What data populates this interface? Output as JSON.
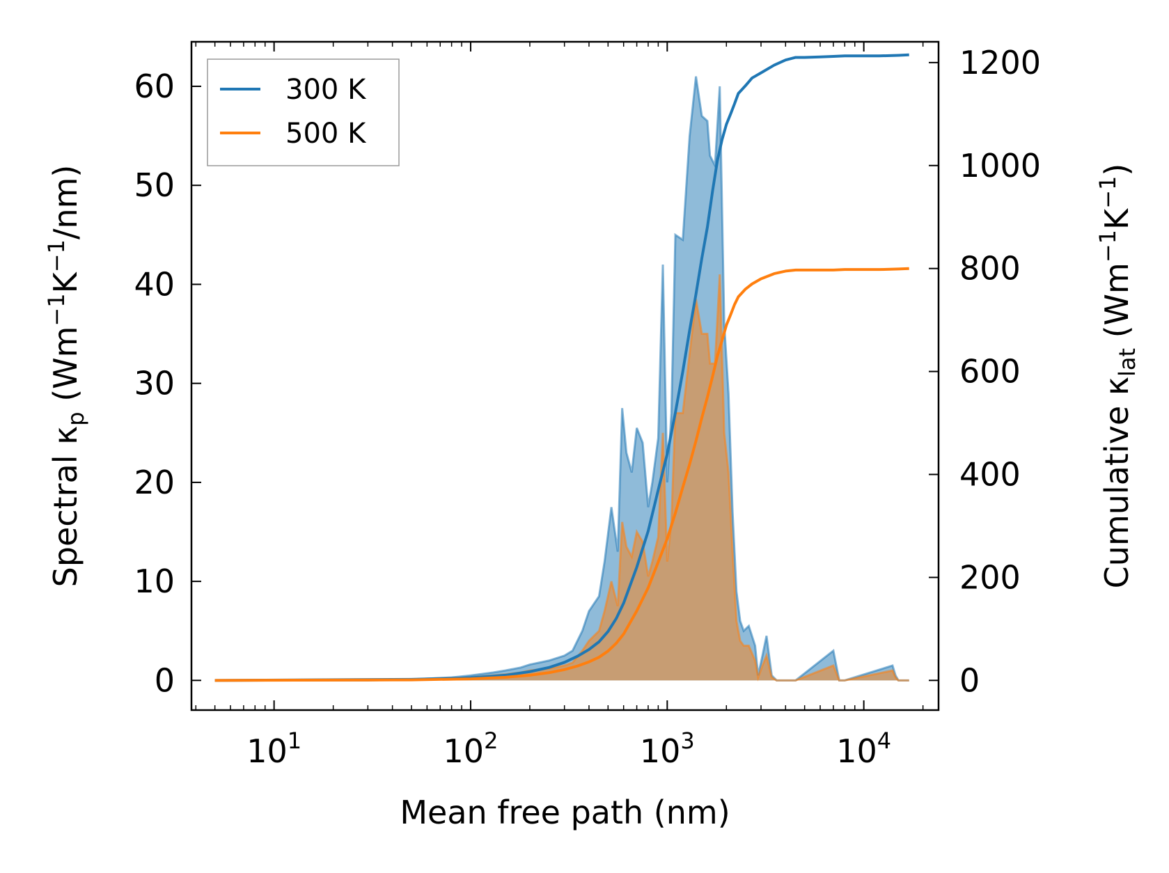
{
  "chart_data": {
    "type": "line",
    "title": "",
    "xlabel": "Mean free path (nm)",
    "ylabel_left": {
      "base": "Spectral κ",
      "sub": "p",
      "unit_prefix": " (Wm",
      "sup1": "−1",
      "mid": "K",
      "sup2": "−1",
      "unit_suffix": "/nm)"
    },
    "ylabel_right": {
      "base": "Cumulative κ",
      "sub": "lat",
      "unit_prefix": " (Wm",
      "sup1": "−1",
      "mid": "K",
      "sup2": "−1",
      "unit_suffix": ")"
    },
    "xscale": "log",
    "xlim": [
      3.8,
      24000
    ],
    "ylim_left": [
      -3,
      64.5
    ],
    "ylim_right": [
      -57.7,
      1240.4
    ],
    "xticks": [
      {
        "value": 10,
        "base": "10",
        "exp": "1"
      },
      {
        "value": 100,
        "base": "10",
        "exp": "2"
      },
      {
        "value": 1000,
        "base": "10",
        "exp": "3"
      },
      {
        "value": 10000,
        "base": "10",
        "exp": "4"
      }
    ],
    "yticks_left": [
      0,
      10,
      20,
      30,
      40,
      50,
      60
    ],
    "yticks_right": [
      0,
      200,
      400,
      600,
      800,
      1000,
      1200
    ],
    "legend": {
      "position": "top-left",
      "entries": [
        "300 K",
        "500 K"
      ]
    },
    "colors": {
      "s300": "#1f77b4",
      "s500": "#ff7f0e",
      "fill300": "#1f77b4",
      "fill500": "#ff7f0e"
    },
    "spectral": [
      {
        "name": "300 K",
        "x": [
          5,
          10,
          30,
          50,
          80,
          100,
          130,
          150,
          180,
          200,
          250,
          300,
          330,
          370,
          400,
          450,
          480,
          520,
          560,
          590,
          620,
          660,
          700,
          750,
          800,
          840,
          900,
          950,
          1000,
          1050,
          1100,
          1200,
          1300,
          1400,
          1500,
          1600,
          1650,
          1750,
          1850,
          1950,
          2050,
          2150,
          2250,
          2350,
          2450,
          2600,
          2800,
          2900,
          3050,
          3200,
          3400,
          3600,
          3800,
          4000,
          4200,
          4500,
          7000,
          7500,
          8000,
          14000,
          14500,
          15000,
          15500,
          16000,
          17000
        ],
        "y": [
          0,
          0,
          0,
          0.1,
          0.3,
          0.5,
          0.8,
          1.0,
          1.3,
          1.6,
          2.0,
          2.5,
          3.0,
          5.0,
          7.0,
          8.5,
          12.0,
          17.5,
          13.0,
          27.5,
          23.0,
          21.0,
          25.5,
          24.0,
          17.5,
          20.0,
          24.5,
          42.0,
          20.0,
          27.0,
          45.0,
          44.5,
          55.0,
          61.0,
          57.0,
          56.5,
          53.0,
          52.0,
          60.0,
          36.0,
          29.0,
          17.0,
          9.0,
          6.0,
          5.0,
          5.5,
          3.5,
          0.5,
          2.5,
          4.5,
          0.5,
          0,
          0,
          0,
          0,
          0,
          3.0,
          0,
          0,
          1.5,
          0.5,
          0,
          0,
          0,
          0
        ]
      },
      {
        "name": "500 K",
        "x": [
          5,
          10,
          30,
          50,
          80,
          100,
          130,
          150,
          180,
          200,
          250,
          300,
          330,
          370,
          400,
          450,
          480,
          520,
          560,
          590,
          620,
          660,
          700,
          750,
          800,
          840,
          900,
          950,
          1000,
          1050,
          1100,
          1200,
          1300,
          1400,
          1500,
          1600,
          1650,
          1750,
          1850,
          1950,
          2050,
          2150,
          2250,
          2350,
          2450,
          2600,
          2800,
          2900,
          3050,
          3200,
          3400,
          3600,
          3800,
          4000,
          4200,
          4500,
          7000,
          7500,
          8000,
          14000,
          14500,
          15000,
          15500,
          16000,
          17000
        ],
        "y": [
          0,
          0,
          0,
          0.05,
          0.2,
          0.3,
          0.5,
          0.6,
          0.8,
          1.0,
          1.2,
          1.5,
          1.8,
          3.0,
          4.0,
          5.0,
          7.0,
          10.0,
          7.5,
          16.0,
          13.5,
          12.5,
          15.0,
          14.0,
          10.5,
          12.0,
          14.5,
          25.0,
          12.0,
          16.0,
          27.0,
          27.0,
          33.0,
          38.5,
          35.0,
          35.0,
          32.0,
          32.0,
          41.0,
          25.0,
          21.0,
          13.0,
          6.0,
          4.0,
          3.5,
          3.5,
          2.0,
          0.3,
          1.5,
          2.5,
          0.3,
          0,
          0,
          0,
          0,
          0,
          1.5,
          0,
          0,
          1.0,
          0.3,
          0,
          0,
          0,
          0
        ]
      }
    ],
    "cumulative": [
      {
        "name": "300 K",
        "x": [
          5,
          50,
          100,
          150,
          200,
          250,
          300,
          350,
          400,
          450,
          500,
          550,
          600,
          700,
          800,
          900,
          1000,
          1100,
          1200,
          1300,
          1400,
          1500,
          1600,
          1700,
          1800,
          1900,
          2000,
          2100,
          2200,
          2300,
          2500,
          2700,
          3000,
          3500,
          4000,
          4500,
          5000,
          6000,
          7000,
          8000,
          10000,
          12000,
          15000,
          17000
        ],
        "y": [
          0,
          2,
          5,
          10,
          17,
          25,
          35,
          47,
          60,
          75,
          95,
          120,
          150,
          220,
          290,
          370,
          440,
          520,
          600,
          680,
          750,
          820,
          880,
          950,
          1010,
          1050,
          1080,
          1100,
          1120,
          1140,
          1155,
          1170,
          1180,
          1195,
          1205,
          1210,
          1210,
          1211,
          1212,
          1213,
          1213,
          1213,
          1214,
          1215
        ]
      },
      {
        "name": "500 K",
        "x": [
          5,
          50,
          100,
          150,
          200,
          250,
          300,
          350,
          400,
          450,
          500,
          550,
          600,
          700,
          800,
          900,
          1000,
          1100,
          1200,
          1300,
          1400,
          1500,
          1600,
          1700,
          1800,
          1900,
          2000,
          2100,
          2200,
          2300,
          2500,
          2700,
          3000,
          3500,
          4000,
          4500,
          5000,
          6000,
          7000,
          8000,
          10000,
          12000,
          15000,
          17000
        ],
        "y": [
          0,
          1,
          3,
          6,
          10,
          15,
          21,
          28,
          36,
          45,
          57,
          72,
          90,
          135,
          180,
          230,
          275,
          325,
          375,
          420,
          465,
          510,
          550,
          590,
          630,
          660,
          690,
          710,
          730,
          745,
          760,
          770,
          780,
          790,
          795,
          797,
          797,
          797,
          797,
          798,
          798,
          798,
          799,
          800
        ]
      }
    ]
  }
}
